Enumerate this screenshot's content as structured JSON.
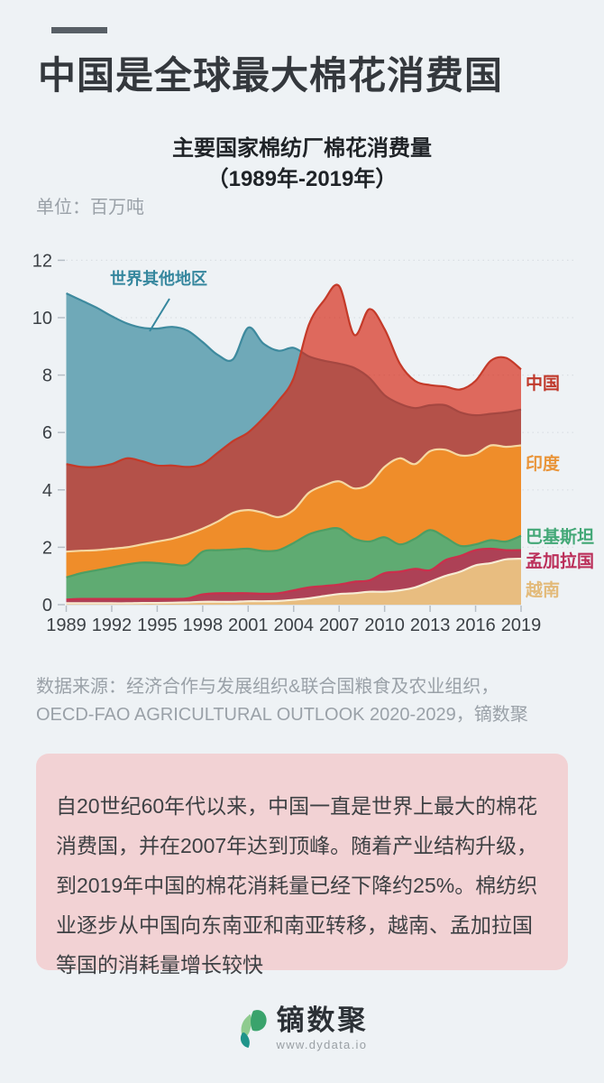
{
  "page": {
    "background_color": "#eef2f5",
    "accent_bar_color": "#585f66",
    "summary_box_color": "#f2d2d4"
  },
  "header": {
    "title": "中国是全球最大棉花消费国"
  },
  "chart_header": {
    "title_line1": "主要国家棉纺厂棉花消费量",
    "title_line2": "（1989年-2019年）",
    "unit": "单位：百万吨"
  },
  "chart_data": {
    "type": "area",
    "mode": "overlapping-areas-from-zero-not-stacked",
    "title": "主要国家棉纺厂棉花消费量（1989年-2019年）",
    "unit": "百万吨",
    "xlabel": "",
    "ylabel": "",
    "ylim": [
      0,
      12
    ],
    "y_ticks": [
      0,
      2,
      4,
      6,
      8,
      10,
      12
    ],
    "grid": "horizontal-dotted",
    "grid_color": "#d9dee3",
    "axis_text_color": "#3b4045",
    "x": [
      1989,
      1990,
      1991,
      1992,
      1993,
      1994,
      1995,
      1996,
      1997,
      1998,
      1999,
      2000,
      2001,
      2002,
      2003,
      2004,
      2005,
      2006,
      2007,
      2008,
      2009,
      2010,
      2011,
      2012,
      2013,
      2014,
      2015,
      2016,
      2017,
      2018,
      2019
    ],
    "x_tick_labels": [
      "1989",
      "1992",
      "1995",
      "1998",
      "2001",
      "2004",
      "2007",
      "2010",
      "2013",
      "2016",
      "2019"
    ],
    "annotation": {
      "label": "世界其他地区",
      "target_series": "世界其他地区"
    },
    "series": [
      {
        "name": "世界其他地区",
        "fill": "#6fa9b8",
        "stroke": "#3e8a9e",
        "label_color": "#36879e",
        "values": [
          10.85,
          10.6,
          10.35,
          10.05,
          9.8,
          9.65,
          9.62,
          9.68,
          9.55,
          9.15,
          8.7,
          8.55,
          9.65,
          9.1,
          8.85,
          8.95,
          8.65,
          8.5,
          8.4,
          8.25,
          7.9,
          7.3,
          7.0,
          6.85,
          6.95,
          6.95,
          6.7,
          6.6,
          6.65,
          6.7,
          6.8
        ]
      },
      {
        "name": "中国",
        "fill": "rgba(214,40,20,0.68)",
        "stroke": "#c43a29",
        "label_color": "#c0392b",
        "values": [
          4.9,
          4.8,
          4.8,
          4.9,
          5.1,
          5.0,
          4.85,
          4.85,
          4.8,
          4.9,
          5.3,
          5.7,
          6.0,
          6.5,
          7.1,
          7.9,
          9.75,
          10.6,
          11.1,
          9.4,
          10.3,
          9.6,
          8.4,
          7.8,
          7.65,
          7.6,
          7.5,
          7.8,
          8.5,
          8.6,
          8.2
        ]
      },
      {
        "name": "印度",
        "fill": "#ef8d2a",
        "stroke": "#f5d8a2",
        "label_color": "#e9953a",
        "values": [
          1.85,
          1.88,
          1.9,
          1.95,
          2.0,
          2.1,
          2.2,
          2.3,
          2.45,
          2.65,
          2.9,
          3.2,
          3.3,
          3.2,
          3.05,
          3.3,
          3.9,
          4.15,
          4.3,
          4.05,
          4.2,
          4.8,
          5.1,
          4.9,
          5.35,
          5.4,
          5.2,
          5.25,
          5.55,
          5.5,
          5.55
        ]
      },
      {
        "name": "巴基斯坦",
        "fill": "#5fab72",
        "stroke": "#4d9e63",
        "label_color": "#43a877",
        "values": [
          0.95,
          1.1,
          1.2,
          1.3,
          1.4,
          1.47,
          1.45,
          1.4,
          1.4,
          1.85,
          1.9,
          1.92,
          1.95,
          1.87,
          1.9,
          2.15,
          2.45,
          2.6,
          2.65,
          2.3,
          2.2,
          2.35,
          2.1,
          2.3,
          2.6,
          2.35,
          2.05,
          2.1,
          2.25,
          2.2,
          2.4
        ]
      },
      {
        "name": "孟加拉国",
        "fill": "#ad4156",
        "stroke": "#cb2f4c",
        "label_color": "#bb2f5a",
        "values": [
          0.18,
          0.2,
          0.2,
          0.2,
          0.2,
          0.2,
          0.2,
          0.2,
          0.22,
          0.36,
          0.4,
          0.4,
          0.4,
          0.38,
          0.4,
          0.5,
          0.6,
          0.65,
          0.7,
          0.8,
          0.85,
          1.1,
          1.15,
          1.25,
          1.2,
          1.55,
          1.7,
          1.9,
          1.95,
          1.9,
          1.9
        ]
      },
      {
        "name": "越南",
        "fill": "#e8bd80",
        "stroke": "#f7ecd4",
        "label_color": "#e3ba79",
        "values": [
          0.05,
          0.05,
          0.05,
          0.05,
          0.05,
          0.06,
          0.06,
          0.07,
          0.08,
          0.1,
          0.1,
          0.1,
          0.12,
          0.12,
          0.13,
          0.17,
          0.22,
          0.3,
          0.37,
          0.4,
          0.45,
          0.45,
          0.5,
          0.6,
          0.8,
          1.0,
          1.15,
          1.37,
          1.45,
          1.58,
          1.6
        ]
      }
    ]
  },
  "source": {
    "line": "数据来源：经济合作与发展组织&联合国粮食及农业组织，\nOECD-FAO AGRICULTURAL OUTLOOK 2020-2029，镝数聚"
  },
  "summary_box": {
    "text": "自20世纪60年代以来，中国一直是世界上最大的棉花\n消费国，并在2007年达到顶峰。随着产业结构升级，\n到2019年中国的棉花消耗量已经下降约25%。棉纺织\n业逐步从中国向东南亚和南亚转移，越南、孟加拉国\n等国的消耗量增长较快"
  },
  "footer": {
    "brand": "镝数聚",
    "url": "www.dydata.io"
  }
}
